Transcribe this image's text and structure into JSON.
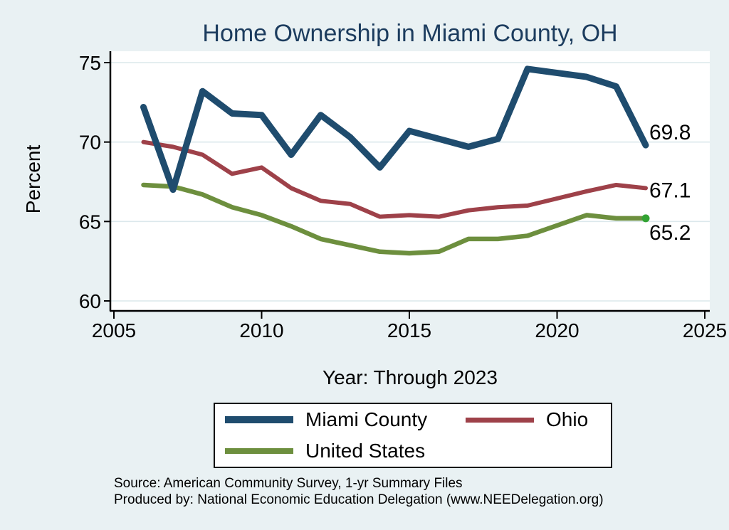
{
  "colors": {
    "background": "#e9f1f3",
    "plot_background": "#ffffff",
    "grid": "#dce8ec",
    "axis": "#000000",
    "title": "#1c3c5e",
    "miami_county_line": "#1f4c6e",
    "ohio_line": "#9e4149",
    "united_states_line": "#6d8f3e",
    "end_dot": "#33a333"
  },
  "footer": {
    "source_line": "Source: American Community Survey, 1-yr Summary Files",
    "produced_by_line": "Produced by: National Economic Education Delegation (www.NEEDelegation.org)"
  },
  "chart_data": {
    "type": "line",
    "title": "Home Ownership in Miami County, OH",
    "ylabel": "Percent",
    "xlabel": "Year: Through 2023",
    "xlim": [
      2005,
      2025
    ],
    "ylim": [
      60,
      75
    ],
    "xticks": [
      2005,
      2010,
      2015,
      2020,
      2025
    ],
    "yticks": [
      60,
      65,
      70,
      75
    ],
    "grid": "horizontal",
    "legend_position": "bottom",
    "years": [
      2006,
      2007,
      2008,
      2009,
      2010,
      2011,
      2012,
      2013,
      2014,
      2015,
      2016,
      2017,
      2018,
      2019,
      2021,
      2022,
      2023
    ],
    "series": [
      {
        "name": "Miami County",
        "color": "#1f4c6e",
        "line_width": 9,
        "end_label": "69.8",
        "values": [
          72.2,
          67.0,
          73.2,
          71.8,
          71.7,
          69.2,
          71.7,
          70.3,
          68.4,
          70.7,
          70.2,
          69.7,
          70.2,
          74.6,
          74.1,
          73.5,
          69.8
        ]
      },
      {
        "name": "Ohio",
        "color": "#9e4149",
        "line_width": 6,
        "end_label": "67.1",
        "values": [
          70.0,
          69.7,
          69.2,
          68.0,
          68.4,
          67.1,
          66.3,
          66.1,
          65.3,
          65.4,
          65.3,
          65.7,
          65.9,
          66.0,
          66.9,
          67.3,
          67.1
        ]
      },
      {
        "name": "United States",
        "color": "#6d8f3e",
        "line_width": 6.5,
        "end_label": "65.2",
        "end_dot_color": "#33a333",
        "values": [
          67.3,
          67.2,
          66.7,
          65.9,
          65.4,
          64.7,
          63.9,
          63.5,
          63.1,
          63.0,
          63.1,
          63.9,
          63.9,
          64.1,
          65.4,
          65.2,
          65.2
        ]
      }
    ]
  }
}
